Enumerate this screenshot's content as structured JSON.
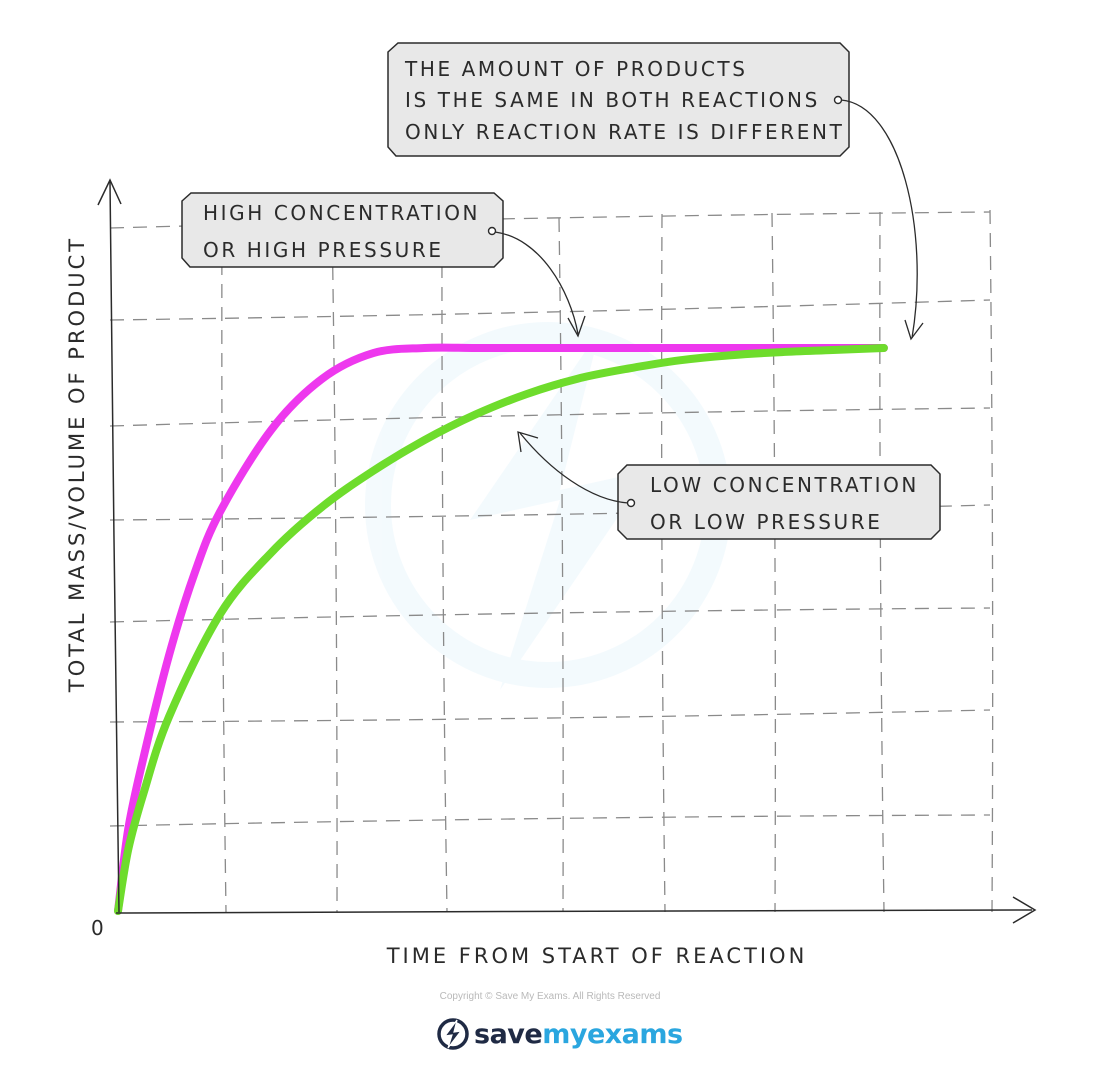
{
  "chart_data": {
    "type": "line",
    "title": "",
    "xlabel": "TIME FROM START OF REACTION",
    "ylabel": "TOTAL MASS/VOLUME OF PRODUCT",
    "origin_label": "0",
    "xlim": [
      0,
      8
    ],
    "ylim": [
      0,
      6
    ],
    "grid": true,
    "series": [
      {
        "name": "HIGH CONCENTRATION OR HIGH PRESSURE",
        "color": "#ee38ee",
        "x": [
          0,
          0.1,
          0.25,
          0.5,
          0.75,
          1.0,
          1.5,
          2.0,
          2.5,
          3.0,
          3.5,
          4.0,
          5.0,
          6.0,
          7.0,
          7.5
        ],
        "y": [
          0,
          0.8,
          1.5,
          2.5,
          3.3,
          3.9,
          4.7,
          5.2,
          5.45,
          5.5,
          5.5,
          5.5,
          5.5,
          5.5,
          5.5,
          5.5
        ]
      },
      {
        "name": "LOW CONCENTRATION OR LOW PRESSURE",
        "color": "#6edc2c",
        "x": [
          0,
          0.1,
          0.25,
          0.5,
          1.0,
          1.5,
          2.0,
          2.5,
          3.0,
          3.5,
          4.0,
          4.5,
          5.0,
          5.5,
          6.0,
          6.5,
          7.0,
          7.5
        ],
        "y": [
          0,
          0.6,
          1.15,
          1.9,
          2.9,
          3.5,
          3.95,
          4.3,
          4.6,
          4.85,
          5.05,
          5.2,
          5.3,
          5.38,
          5.43,
          5.46,
          5.48,
          5.5
        ]
      }
    ],
    "annotations": [
      {
        "name": "products-note",
        "lines": [
          "THE AMOUNT OF PRODUCTS",
          "IS THE SAME IN BOTH REACTIONS",
          "ONLY REACTION RATE IS DIFFERENT"
        ]
      },
      {
        "name": "high-note",
        "lines": [
          "HIGH CONCENTRATION",
          "OR HIGH PRESSURE"
        ]
      },
      {
        "name": "low-note",
        "lines": [
          "LOW CONCENTRATION",
          "OR LOW PRESSURE"
        ]
      }
    ]
  },
  "footer": {
    "copyright": "Copyright © Save My Exams. All Rights Reserved",
    "brand_part1": "save",
    "brand_part2": "my",
    "brand_part3": "exams"
  },
  "colors": {
    "high": "#ee38ee",
    "low": "#6edc2c",
    "axis": "#2b2b2b",
    "grid": "#8a8a8a",
    "callout_fill": "#e8e8e8"
  }
}
